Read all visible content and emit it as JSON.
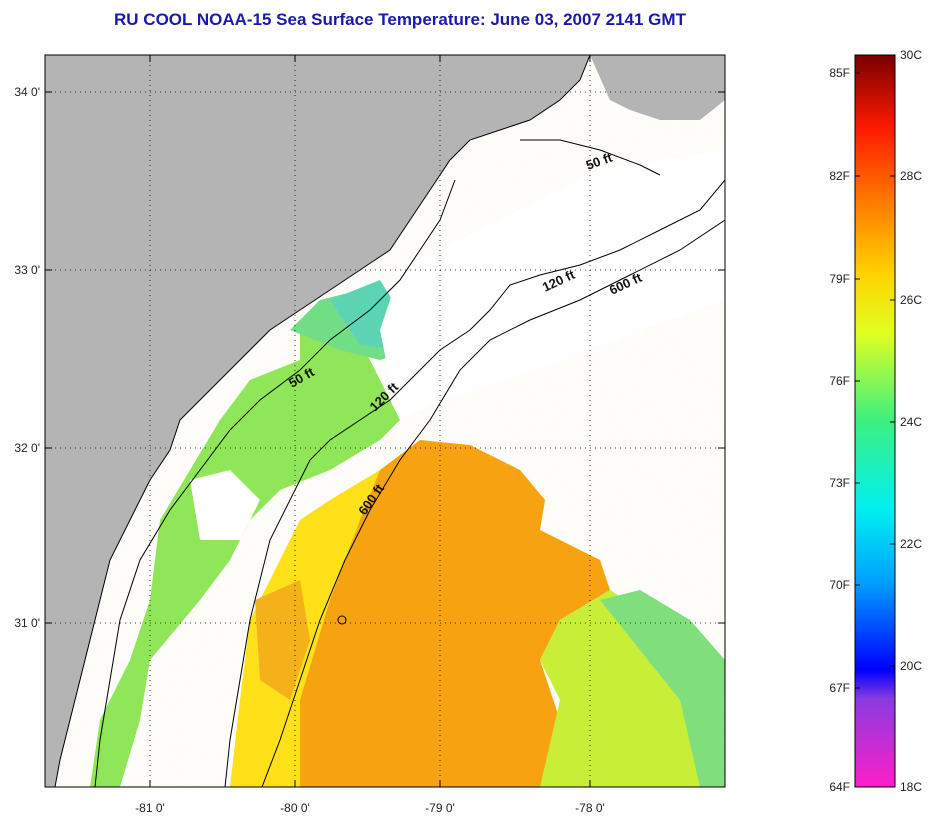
{
  "title": "RU COOL  NOAA-15  Sea Surface Temperature:  June 03, 2007 2141 GMT",
  "axes": {
    "lon_ticks": [
      "-81 0'",
      "-80 0'",
      "-79 0'",
      "-78 0'"
    ],
    "lat_ticks": [
      "34 0'",
      "33 0'",
      "32 0'",
      "31 0'"
    ]
  },
  "contours": {
    "label_50_a": "50 ft",
    "label_50_b": "50 ft",
    "label_120_a": "120 ft",
    "label_120_b": "120 ft",
    "label_600_a": "600 ft",
    "label_600_b": "600 ft"
  },
  "colorbar": {
    "fahrenheit": [
      "85F",
      "82F",
      "79F",
      "76F",
      "73F",
      "70F",
      "67F",
      "64F"
    ],
    "celsius": [
      "30C",
      "28C",
      "26C",
      "24C",
      "22C",
      "20C",
      "18C"
    ]
  },
  "colors": {
    "land": "#b4b4b4",
    "cloud": "#ffffff",
    "title": "#1a1aa8"
  }
}
